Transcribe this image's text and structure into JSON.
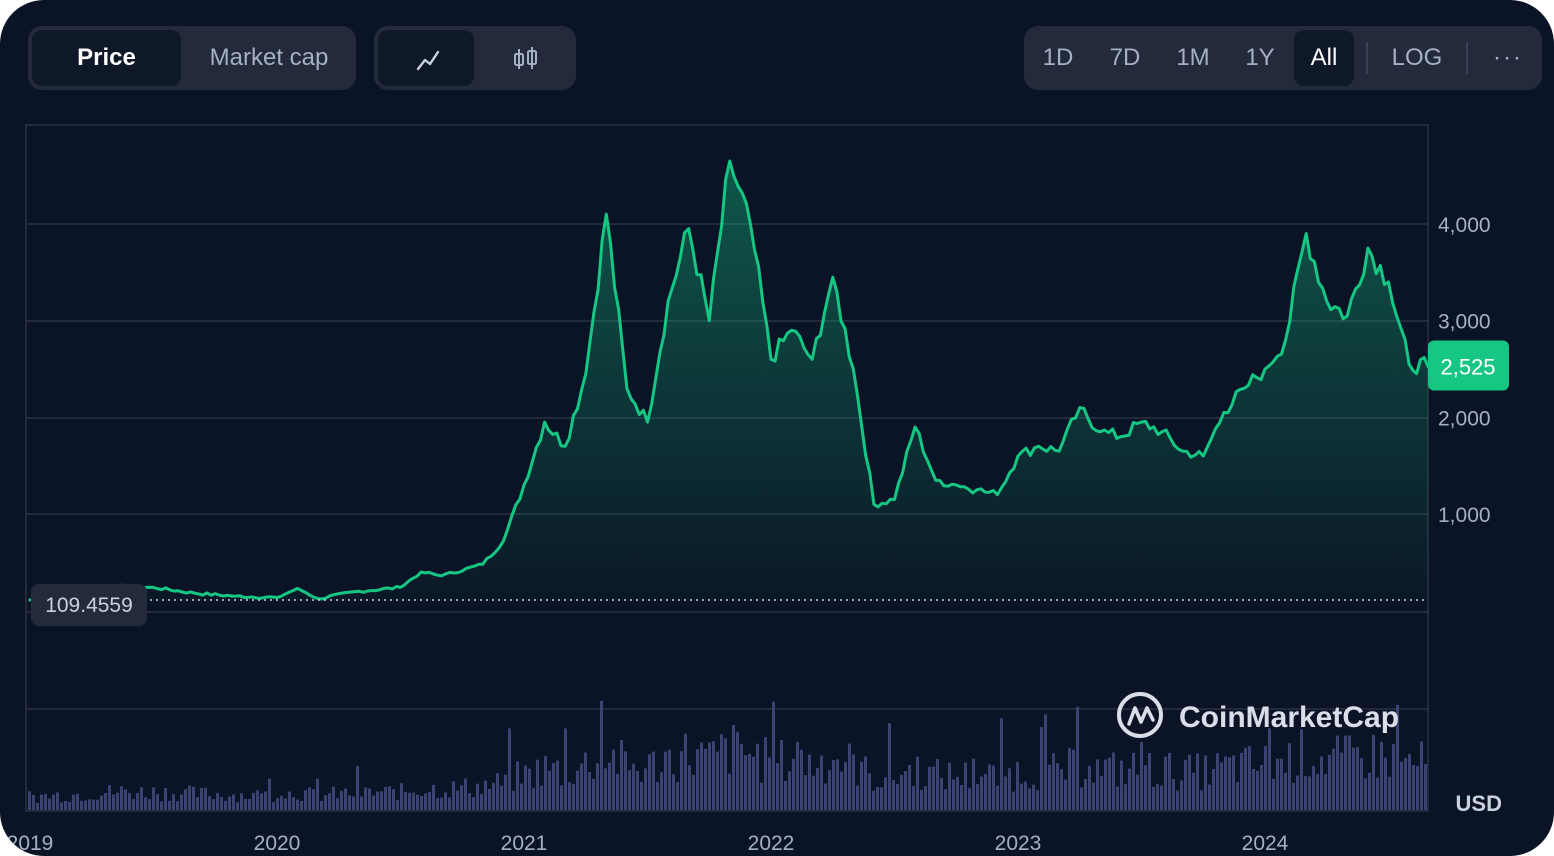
{
  "toolbar": {
    "view_tabs": [
      {
        "label": "Price",
        "active": true
      },
      {
        "label": "Market cap",
        "active": false
      }
    ],
    "chart_style": [
      {
        "icon": "line-chart-icon",
        "active": true
      },
      {
        "icon": "candlestick-icon",
        "active": false
      }
    ],
    "ranges": [
      {
        "label": "1D",
        "active": false
      },
      {
        "label": "7D",
        "active": false
      },
      {
        "label": "1M",
        "active": false
      },
      {
        "label": "1Y",
        "active": false
      },
      {
        "label": "All",
        "active": true
      }
    ],
    "log_label": "LOG",
    "more_label": "···"
  },
  "brand": {
    "name": "CoinMarketCap",
    "icon": "coinmarketcap-logo-icon"
  },
  "currency_label": "USD",
  "colors": {
    "background": "#0b1426",
    "line": "#16c784",
    "grid": "#2a3244",
    "volume": "#3b4470",
    "current_price_badge": "#16c784"
  },
  "chart_data": {
    "type": "line",
    "title": "",
    "xlabel": "",
    "ylabel": "",
    "x_ticks": [
      "2019",
      "2020",
      "2021",
      "2022",
      "2023",
      "2024"
    ],
    "y_ticks": [
      1000,
      2000,
      3000,
      4000
    ],
    "y_tick_labels": [
      "1,000",
      "2,000",
      "3,000",
      "4,000"
    ],
    "ylim": [
      -1000,
      5000
    ],
    "grid": true,
    "start_price_label": "109.4559",
    "start_price": 110,
    "current_price_label": "2,525",
    "current_price": 2525,
    "series": [
      {
        "values": [
          [
            "2019-01",
            110
          ],
          [
            "2019-03",
            135
          ],
          [
            "2019-05",
            250
          ],
          [
            "2019-07",
            240
          ],
          [
            "2019-09",
            180
          ],
          [
            "2019-11",
            150
          ],
          [
            "2020-01",
            135
          ],
          [
            "2020-02",
            230
          ],
          [
            "2020-03",
            125
          ],
          [
            "2020-05",
            200
          ],
          [
            "2020-07",
            240
          ],
          [
            "2020-08",
            400
          ],
          [
            "2020-09",
            360
          ],
          [
            "2020-11",
            480
          ],
          [
            "2020-12",
            720
          ],
          [
            "2021-01",
            1300
          ],
          [
            "2021-02",
            1950
          ],
          [
            "2021-03",
            1700
          ],
          [
            "2021-04",
            2450
          ],
          [
            "2021-05",
            4100
          ],
          [
            "2021-06",
            2300
          ],
          [
            "2021-07",
            1950
          ],
          [
            "2021-08",
            3200
          ],
          [
            "2021-09",
            3950
          ],
          [
            "2021-10",
            3000
          ],
          [
            "2021-11",
            4650
          ],
          [
            "2021-12",
            4000
          ],
          [
            "2022-01",
            2600
          ],
          [
            "2022-02",
            2900
          ],
          [
            "2022-03",
            2600
          ],
          [
            "2022-04",
            3450
          ],
          [
            "2022-05",
            2500
          ],
          [
            "2022-06",
            1100
          ],
          [
            "2022-07",
            1150
          ],
          [
            "2022-08",
            1900
          ],
          [
            "2022-09",
            1350
          ],
          [
            "2022-10",
            1300
          ],
          [
            "2022-11",
            1250
          ],
          [
            "2022-12",
            1200
          ],
          [
            "2023-01",
            1600
          ],
          [
            "2023-02",
            1700
          ],
          [
            "2023-03",
            1650
          ],
          [
            "2023-04",
            2100
          ],
          [
            "2023-05",
            1850
          ],
          [
            "2023-06",
            1800
          ],
          [
            "2023-07",
            1950
          ],
          [
            "2023-08",
            1850
          ],
          [
            "2023-09",
            1650
          ],
          [
            "2023-10",
            1600
          ],
          [
            "2023-11",
            2050
          ],
          [
            "2023-12",
            2300
          ],
          [
            "2024-01",
            2500
          ],
          [
            "2024-02",
            2800
          ],
          [
            "2024-03",
            3900
          ],
          [
            "2024-04",
            3200
          ],
          [
            "2024-05",
            3050
          ],
          [
            "2024-06",
            3750
          ],
          [
            "2024-07",
            3400
          ],
          [
            "2024-08",
            2550
          ],
          [
            "2024-09",
            2525
          ]
        ]
      }
    ]
  }
}
